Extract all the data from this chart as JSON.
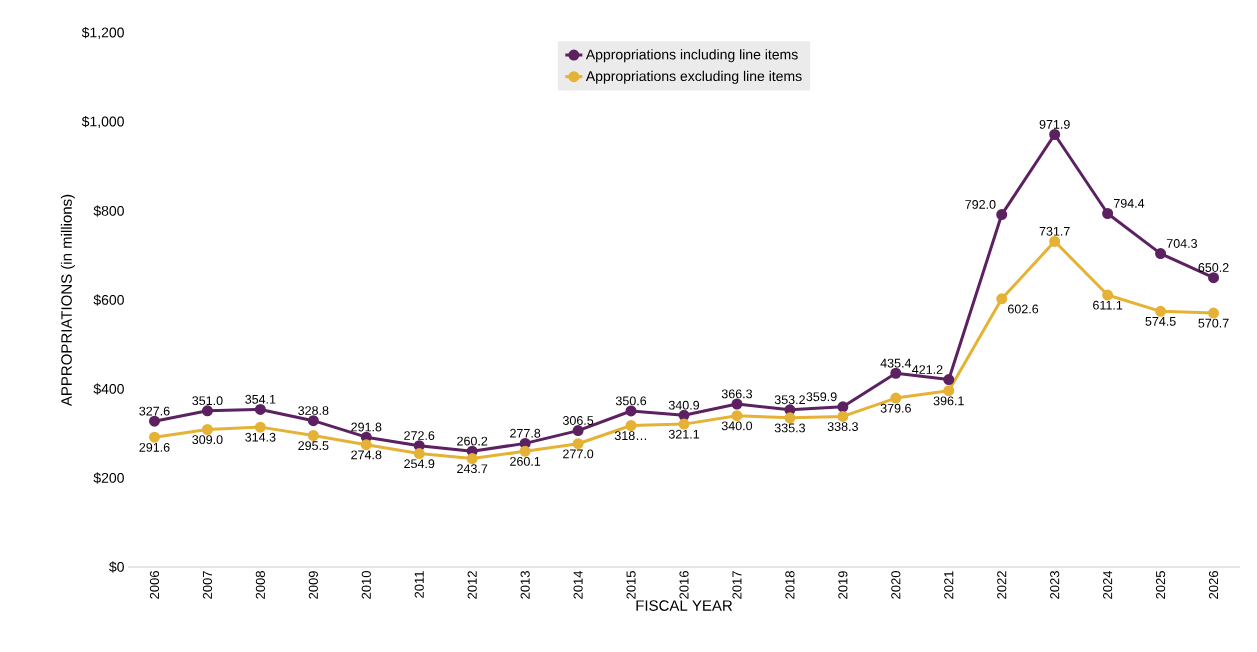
{
  "chart_data": {
    "type": "line",
    "xlabel": "FISCAL YEAR",
    "ylabel": "APPROPRIATIONS (in millions)",
    "categories": [
      "2006",
      "2007",
      "2008",
      "2009",
      "2010",
      "2011",
      "2012",
      "2013",
      "2014",
      "2015",
      "2016",
      "2017",
      "2018",
      "2019",
      "2020",
      "2021",
      "2022",
      "2023",
      "2024",
      "2025",
      "2026"
    ],
    "series": [
      {
        "name": "Appropriations including line items",
        "color": "#5c2160",
        "values": [
          327.6,
          351.0,
          354.1,
          328.8,
          291.8,
          272.6,
          260.2,
          277.8,
          306.5,
          350.6,
          340.9,
          366.3,
          353.2,
          359.9,
          435.4,
          421.2,
          792.0,
          971.9,
          794.4,
          704.3,
          650.2
        ],
        "value_labels": [
          "327.6",
          "351.0",
          "354.1",
          "328.8",
          "291.8",
          "272.6",
          "260.2",
          "277.8",
          "306.5",
          "350.6",
          "340.9",
          "366.3",
          "353.2",
          "359.9",
          "435.4",
          "421.2",
          "792.0",
          "971.9",
          "794.4",
          "704.3",
          "650.2"
        ]
      },
      {
        "name": "Appropriations excluding line items",
        "color": "#e5b236",
        "values": [
          291.6,
          309.0,
          314.3,
          295.5,
          274.8,
          254.9,
          243.7,
          260.1,
          277.0,
          318,
          321.1,
          340.0,
          335.3,
          338.3,
          379.6,
          396.1,
          602.6,
          731.7,
          611.1,
          574.5,
          570.7
        ],
        "value_labels": [
          "291.6",
          "309.0",
          "314.3",
          "295.5",
          "274.8",
          "254.9",
          "243.7",
          "260.1",
          "277.0",
          "318…",
          "321.1",
          "340.0",
          "335.3",
          "338.3",
          "379.6",
          "396.1",
          "602.6",
          "731.7",
          "611.1",
          "574.5",
          "570.7"
        ]
      }
    ],
    "ylim": [
      0,
      1200
    ],
    "yticks": [
      {
        "value": 0,
        "label": "$0"
      },
      {
        "value": 200,
        "label": "$200"
      },
      {
        "value": 400,
        "label": "$400"
      },
      {
        "value": 600,
        "label": "$600"
      },
      {
        "value": 800,
        "label": "$800"
      },
      {
        "value": 1000,
        "label": "$1,000"
      },
      {
        "value": 1200,
        "label": "$1,200"
      }
    ],
    "grid": false,
    "legend": "top",
    "marker": "circle",
    "line_style": "solid"
  }
}
